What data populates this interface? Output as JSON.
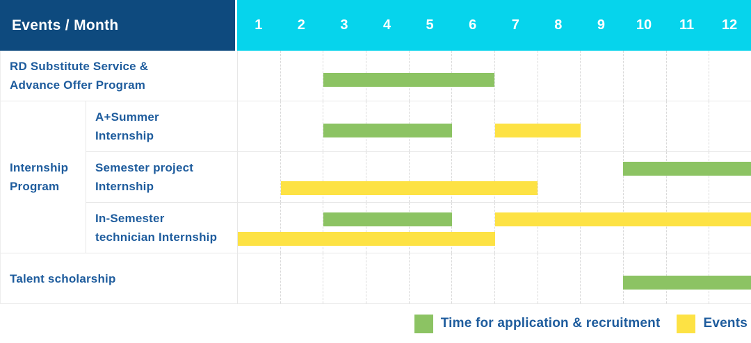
{
  "title": "Events / Month",
  "colors": {
    "header_bg": "#0e4a7e",
    "months_bg": "#06d4ec",
    "label_text": "#1e5c9d",
    "green": "#8cc363",
    "yellow": "#fde244",
    "row_line": "#e7e7e7",
    "column_dash": "#d9d9d9"
  },
  "chart_data": {
    "type": "bar",
    "subtype": "gantt-timeline",
    "corner_label": "Events / Month",
    "x_axis_label": "Month",
    "months": [
      "1",
      "2",
      "3",
      "4",
      "5",
      "6",
      "7",
      "8",
      "9",
      "10",
      "11",
      "12"
    ],
    "x_range": [
      1,
      12
    ],
    "grid": "dashed-vertical-month-lines",
    "legend_position": "bottom-right",
    "group_cell": {
      "label": "Internship Program",
      "label_lines": [
        "Internship",
        "Program"
      ],
      "row_span": [
        2,
        4
      ]
    },
    "rows": [
      {
        "label": "RD Substitute Service & Advance Offer Program",
        "label_lines": [
          "RD Substitute Service &",
          "Advance Offer Program"
        ],
        "group": null,
        "bars": [
          {
            "color": "green",
            "meaning": "Time for application & recruitment",
            "start_month": 3,
            "end_month": 6,
            "line": "single"
          }
        ]
      },
      {
        "label": "A+Summer Internship",
        "label_lines": [
          "A+Summer",
          "Internship"
        ],
        "group": "Internship Program",
        "bars": [
          {
            "color": "green",
            "meaning": "Time for application & recruitment",
            "start_month": 3,
            "end_month": 5,
            "line": "single"
          },
          {
            "color": "yellow",
            "meaning": "Events",
            "start_month": 7,
            "end_month": 8,
            "line": "single"
          }
        ]
      },
      {
        "label": "Semester project Internship",
        "label_lines": [
          "Semester project",
          "Internship"
        ],
        "group": "Internship Program",
        "bars": [
          {
            "color": "green",
            "meaning": "Time for application & recruitment",
            "start_month": 10,
            "end_month": 12,
            "line": "top"
          },
          {
            "color": "yellow",
            "meaning": "Events",
            "start_month": 2,
            "end_month": 7,
            "line": "bottom"
          }
        ]
      },
      {
        "label": "In-Semester technician Internship",
        "label_lines": [
          "In-Semester",
          "technician Internship"
        ],
        "group": "Internship Program",
        "bars": [
          {
            "color": "green",
            "meaning": "Time for application & recruitment",
            "start_month": 3,
            "end_month": 5,
            "line": "top"
          },
          {
            "color": "yellow",
            "meaning": "Events",
            "start_month": 7,
            "end_month": 12,
            "line": "top"
          },
          {
            "color": "yellow",
            "meaning": "Events",
            "start_month": 1,
            "end_month": 6,
            "line": "bottom"
          }
        ]
      },
      {
        "label": "Talent scholarship",
        "label_lines": [
          "Talent scholarship"
        ],
        "group": null,
        "bars": [
          {
            "color": "green",
            "meaning": "Time for application & recruitment",
            "start_month": 10,
            "end_month": 12,
            "line": "single"
          }
        ]
      }
    ],
    "legend": [
      {
        "label": "Time for application & recruitment",
        "color": "green"
      },
      {
        "label": "Events",
        "color": "yellow"
      }
    ]
  }
}
